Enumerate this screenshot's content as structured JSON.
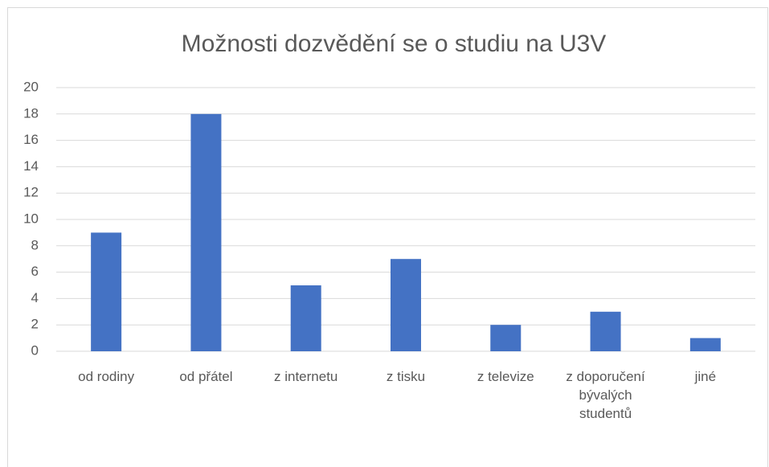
{
  "chart_data": {
    "type": "bar",
    "title": "Možnosti dozvědění se o studiu na U3V",
    "categories": [
      "od rodiny",
      "od přátel",
      "z internetu",
      "z tisku",
      "z televize",
      "z doporučení bývalých studentů",
      "jiné"
    ],
    "values": [
      9,
      18,
      5,
      7,
      2,
      3,
      1
    ],
    "color": "#4472c4",
    "ylim": [
      0,
      20
    ],
    "yticks": [
      0,
      2,
      4,
      6,
      8,
      10,
      12,
      14,
      16,
      18,
      20
    ],
    "grid": true
  }
}
